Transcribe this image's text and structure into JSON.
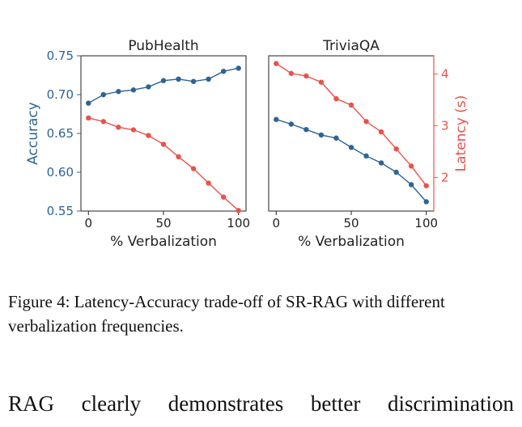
{
  "chart_data": [
    {
      "type": "line",
      "title": "PubHealth",
      "xlabel": "% Verbalization",
      "ylabel": "Accuracy",
      "x": [
        0,
        10,
        20,
        30,
        40,
        50,
        60,
        70,
        80,
        90,
        100
      ],
      "xlim": [
        -5,
        105
      ],
      "xticks": [
        "0",
        "50",
        "100"
      ],
      "ylim": [
        0.55,
        0.75
      ],
      "yticks": [
        "0.55",
        "0.60",
        "0.65",
        "0.70",
        "0.75"
      ],
      "y2lim": [
        1.35,
        4.35
      ],
      "series": [
        {
          "axis": "left",
          "color": "#2e6395",
          "values": [
            0.689,
            0.7,
            0.704,
            0.706,
            0.71,
            0.718,
            0.72,
            0.717,
            0.72,
            0.73,
            0.734
          ]
        },
        {
          "axis": "right",
          "color": "#e8534b",
          "values": [
            3.15,
            3.08,
            2.97,
            2.92,
            2.81,
            2.64,
            2.4,
            2.17,
            1.89,
            1.62,
            1.36
          ]
        }
      ]
    },
    {
      "type": "line",
      "title": "TriviaQA",
      "xlabel": "% Verbalization",
      "y2label": "Latency (s)",
      "x": [
        0,
        10,
        20,
        30,
        40,
        50,
        60,
        70,
        80,
        90,
        100
      ],
      "xlim": [
        -5,
        105
      ],
      "xticks": [
        "0",
        "50",
        "100"
      ],
      "ylim": [
        0.55,
        0.75
      ],
      "y2lim": [
        1.35,
        4.35
      ],
      "y2ticks": [
        "2",
        "3",
        "4"
      ],
      "series": [
        {
          "axis": "left",
          "color": "#2e6395",
          "values": [
            0.668,
            0.662,
            0.655,
            0.648,
            0.644,
            0.632,
            0.621,
            0.612,
            0.6,
            0.584,
            0.562
          ]
        },
        {
          "axis": "right",
          "color": "#e8534b",
          "values": [
            4.2,
            4.01,
            3.96,
            3.84,
            3.52,
            3.4,
            3.08,
            2.88,
            2.55,
            2.22,
            1.84
          ]
        }
      ]
    }
  ],
  "colors": {
    "accuracy": "#2e6395",
    "latency": "#e8534b",
    "axis": "#222222"
  },
  "caption": "Figure 4: Latency-Accuracy trade-off of SR-RAG with different verbalization frequencies.",
  "body_text": "RAG clearly demonstrates better discrimination"
}
